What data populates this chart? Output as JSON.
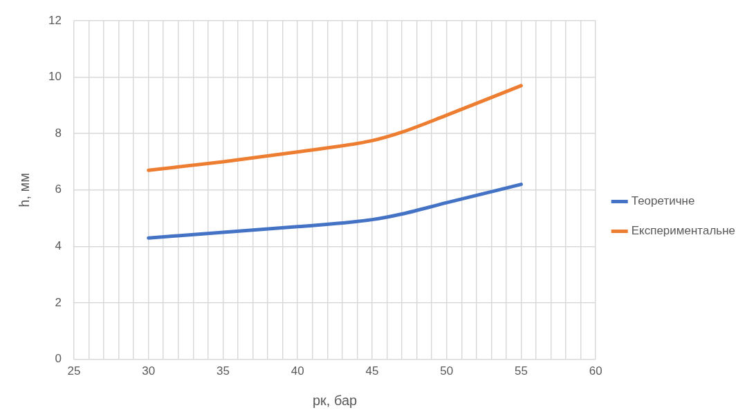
{
  "chart_data": {
    "type": "line",
    "xlabel": "рк, бар",
    "ylabel": "h, мм",
    "x": [
      30,
      35,
      40,
      45,
      47,
      50,
      55
    ],
    "series": [
      {
        "name": "Теоретичне",
        "color": "#4472c4",
        "values": [
          4.3,
          4.5,
          4.7,
          4.95,
          5.15,
          5.55,
          6.2
        ]
      },
      {
        "name": "Експериментальне",
        "color": "#ed7d31",
        "values": [
          6.7,
          7.0,
          7.35,
          7.75,
          8.05,
          8.65,
          9.7
        ]
      }
    ],
    "xlim": [
      25,
      60
    ],
    "xticks": [
      25,
      {
        "value": 26,
        "label": null
      },
      {
        "value": 27,
        "label": null
      },
      {
        "value": 28,
        "label": null
      },
      {
        "value": 29,
        "label": null
      },
      30,
      {
        "value": 31,
        "label": null
      },
      {
        "value": 32,
        "label": null
      },
      {
        "value": 33,
        "label": null
      },
      {
        "value": 34,
        "label": null
      },
      35,
      {
        "value": 36,
        "label": null
      },
      {
        "value": 37,
        "label": null
      },
      {
        "value": 38,
        "label": null
      },
      {
        "value": 39,
        "label": null
      },
      40,
      {
        "value": 41,
        "label": null
      },
      {
        "value": 42,
        "label": null
      },
      {
        "value": 43,
        "label": null
      },
      {
        "value": 44,
        "label": null
      },
      45,
      {
        "value": 46,
        "label": null
      },
      {
        "value": 47,
        "label": null
      },
      {
        "value": 48,
        "label": null
      },
      {
        "value": 49,
        "label": null
      },
      50,
      {
        "value": 51,
        "label": null
      },
      {
        "value": 52,
        "label": null
      },
      {
        "value": 53,
        "label": null
      },
      {
        "value": 54,
        "label": null
      },
      55,
      {
        "value": 56,
        "label": null
      },
      {
        "value": 57,
        "label": null
      },
      {
        "value": 58,
        "label": null
      },
      {
        "value": 59,
        "label": null
      },
      60
    ],
    "ylim": [
      0,
      12
    ],
    "yticks": [
      0,
      2,
      4,
      6,
      8,
      10,
      12
    ],
    "grid": true,
    "legend": "right",
    "marker": "none",
    "line_style": "solid"
  }
}
